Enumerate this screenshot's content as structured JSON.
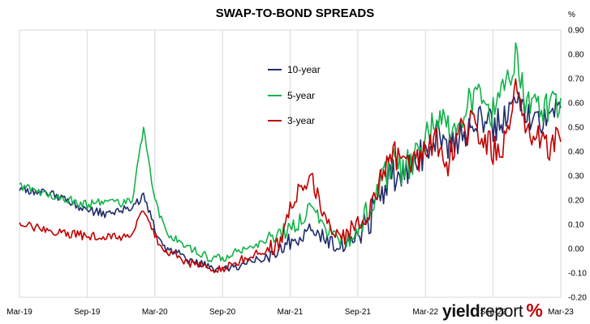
{
  "chart_data": {
    "type": "line",
    "title": "SWAP-TO-BOND SPREADS",
    "unit": "%",
    "x_ticks": [
      "Mar-19",
      "Sep-19",
      "Mar-20",
      "Sep-20",
      "Mar-21",
      "Sep-21",
      "Mar-22",
      "Sep-22",
      "Mar-23"
    ],
    "y_ticks": [
      "0.90",
      "0.80",
      "0.70",
      "0.60",
      "0.50",
      "0.40",
      "0.30",
      "0.20",
      "0.10",
      "0.00",
      "-0.10",
      "-0.20"
    ],
    "ylim": [
      -0.2,
      0.9
    ],
    "grid": "vertical only, at x tick positions",
    "legend_position": "inside, upper middle",
    "source_logo": {
      "text_bold": "yield",
      "text_regular": "report",
      "symbol": "%"
    },
    "series": [
      {
        "name": "10-year",
        "color": "#1f2d6b",
        "points": [
          [
            0,
            0.25
          ],
          [
            1,
            0.24
          ],
          [
            2,
            0.23
          ],
          [
            3,
            0.22
          ],
          [
            4,
            0.21
          ],
          [
            5,
            0.18
          ],
          [
            6,
            0.16
          ],
          [
            7,
            0.15
          ],
          [
            8,
            0.14
          ],
          [
            9,
            0.16
          ],
          [
            10,
            0.17
          ],
          [
            11,
            0.22
          ],
          [
            12,
            0.08
          ],
          [
            13,
            0.0
          ],
          [
            14,
            -0.02
          ],
          [
            15,
            -0.05
          ],
          [
            16,
            -0.06
          ],
          [
            17,
            -0.08
          ],
          [
            18,
            -0.09
          ],
          [
            19,
            -0.08
          ],
          [
            20,
            -0.06
          ],
          [
            21,
            -0.05
          ],
          [
            22,
            -0.03
          ],
          [
            23,
            0.0
          ],
          [
            24,
            0.03
          ],
          [
            25,
            0.04
          ],
          [
            26,
            0.08
          ],
          [
            27,
            0.05
          ],
          [
            28,
            0.02
          ],
          [
            29,
            0.0
          ],
          [
            30,
            0.06
          ],
          [
            31,
            0.12
          ],
          [
            32,
            0.22
          ],
          [
            33,
            0.3
          ],
          [
            34,
            0.28
          ],
          [
            35,
            0.36
          ],
          [
            36,
            0.4
          ],
          [
            37,
            0.48
          ],
          [
            38,
            0.44
          ],
          [
            39,
            0.45
          ],
          [
            40,
            0.48
          ],
          [
            41,
            0.55
          ],
          [
            42,
            0.5
          ],
          [
            43,
            0.55
          ],
          [
            44,
            0.62
          ],
          [
            45,
            0.57
          ],
          [
            46,
            0.53
          ],
          [
            47,
            0.55
          ],
          [
            48,
            0.58
          ]
        ]
      },
      {
        "name": "5-year",
        "color": "#13b24a",
        "points": [
          [
            0,
            0.26
          ],
          [
            1,
            0.25
          ],
          [
            2,
            0.23
          ],
          [
            3,
            0.22
          ],
          [
            4,
            0.21
          ],
          [
            5,
            0.19
          ],
          [
            6,
            0.18
          ],
          [
            7,
            0.19
          ],
          [
            8,
            0.2
          ],
          [
            9,
            0.18
          ],
          [
            10,
            0.2
          ],
          [
            11,
            0.5
          ],
          [
            12,
            0.2
          ],
          [
            13,
            0.06
          ],
          [
            14,
            0.04
          ],
          [
            15,
            0.0
          ],
          [
            16,
            -0.02
          ],
          [
            17,
            -0.04
          ],
          [
            18,
            -0.04
          ],
          [
            19,
            -0.02
          ],
          [
            20,
            0.0
          ],
          [
            21,
            0.02
          ],
          [
            22,
            0.04
          ],
          [
            23,
            0.06
          ],
          [
            24,
            0.08
          ],
          [
            25,
            0.12
          ],
          [
            26,
            0.18
          ],
          [
            27,
            0.08
          ],
          [
            28,
            0.05
          ],
          [
            29,
            0.03
          ],
          [
            30,
            0.08
          ],
          [
            31,
            0.18
          ],
          [
            32,
            0.25
          ],
          [
            33,
            0.36
          ],
          [
            34,
            0.32
          ],
          [
            35,
            0.38
          ],
          [
            36,
            0.44
          ],
          [
            37,
            0.55
          ],
          [
            38,
            0.5
          ],
          [
            39,
            0.55
          ],
          [
            40,
            0.6
          ],
          [
            41,
            0.62
          ],
          [
            42,
            0.56
          ],
          [
            43,
            0.64
          ],
          [
            44,
            0.78
          ],
          [
            45,
            0.6
          ],
          [
            46,
            0.57
          ],
          [
            47,
            0.58
          ],
          [
            48,
            0.62
          ]
        ]
      },
      {
        "name": "3-year",
        "color": "#c00000",
        "points": [
          [
            0,
            0.1
          ],
          [
            1,
            0.09
          ],
          [
            2,
            0.08
          ],
          [
            3,
            0.07
          ],
          [
            4,
            0.06
          ],
          [
            5,
            0.06
          ],
          [
            6,
            0.05
          ],
          [
            7,
            0.05
          ],
          [
            8,
            0.05
          ],
          [
            9,
            0.05
          ],
          [
            10,
            0.06
          ],
          [
            11,
            0.16
          ],
          [
            12,
            0.05
          ],
          [
            13,
            -0.01
          ],
          [
            14,
            -0.03
          ],
          [
            15,
            -0.06
          ],
          [
            16,
            -0.07
          ],
          [
            17,
            -0.09
          ],
          [
            18,
            -0.08
          ],
          [
            19,
            -0.06
          ],
          [
            20,
            -0.04
          ],
          [
            21,
            -0.02
          ],
          [
            22,
            0.0
          ],
          [
            23,
            0.02
          ],
          [
            24,
            0.16
          ],
          [
            25,
            0.26
          ],
          [
            26,
            0.28
          ],
          [
            27,
            0.14
          ],
          [
            28,
            0.06
          ],
          [
            29,
            0.05
          ],
          [
            30,
            0.12
          ],
          [
            31,
            0.19
          ],
          [
            32,
            0.28
          ],
          [
            33,
            0.4
          ],
          [
            34,
            0.34
          ],
          [
            35,
            0.34
          ],
          [
            36,
            0.38
          ],
          [
            37,
            0.45
          ],
          [
            38,
            0.36
          ],
          [
            39,
            0.48
          ],
          [
            40,
            0.5
          ],
          [
            41,
            0.5
          ],
          [
            42,
            0.4
          ],
          [
            43,
            0.45
          ],
          [
            44,
            0.68
          ],
          [
            45,
            0.52
          ],
          [
            46,
            0.46
          ],
          [
            47,
            0.42
          ],
          [
            48,
            0.44
          ]
        ]
      }
    ]
  }
}
